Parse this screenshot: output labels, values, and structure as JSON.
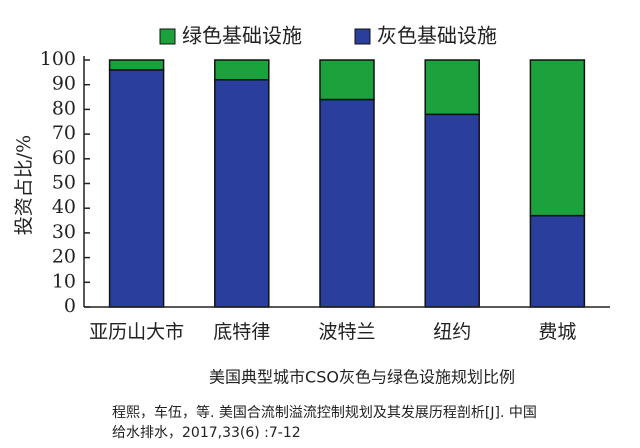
{
  "chart_data": {
    "type": "stacked_bar",
    "title": "美国典型城市CSO灰色与绿色设施规划比例",
    "y_label": "投资占比/%",
    "categories": [
      "亚历山大市",
      "底特律",
      "波特兰",
      "纽约",
      "费城"
    ],
    "series": [
      {
        "name": "灰色基础设施",
        "color": "#2a3f9d",
        "values": [
          96,
          92,
          84,
          78,
          37
        ]
      },
      {
        "name": "绿色基础设施",
        "color": "#1ba23c",
        "values": [
          4,
          8,
          16,
          22,
          63
        ]
      }
    ],
    "ylim": [
      0,
      100
    ],
    "yticks": [
      0,
      10,
      20,
      30,
      40,
      50,
      60,
      70,
      80,
      90,
      100
    ],
    "source_lines": [
      "程熙，车伍，等. 美国合流制溢流控制规划及其发展历程剖析[J]. 中国",
      "给水排水，2017,33(6) :7-12"
    ]
  }
}
